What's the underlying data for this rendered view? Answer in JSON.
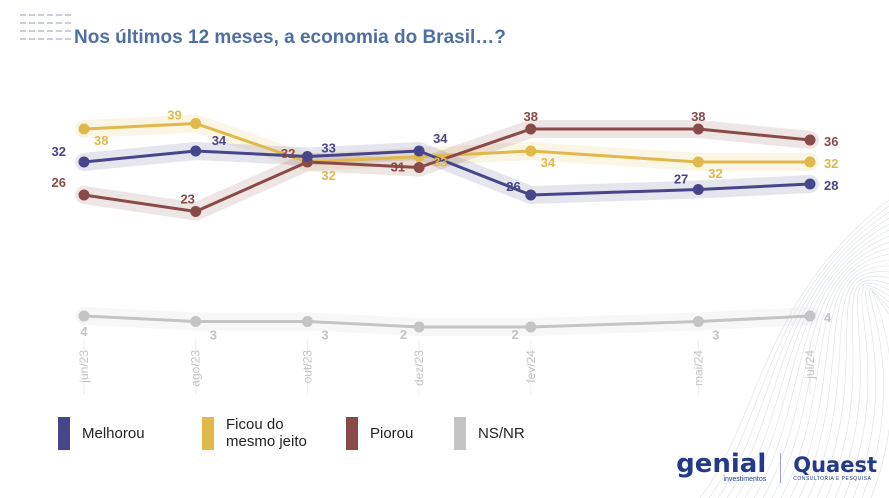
{
  "chart_data": {
    "type": "line",
    "title": "Nos últimos 12 meses, a economia do Brasil…?",
    "categories": [
      "jun/23",
      "ago/23",
      "out/23",
      "dez/23",
      "fev/24",
      "mai/24",
      "jul/24"
    ],
    "x": [
      0,
      2,
      4,
      6,
      8,
      11,
      13
    ],
    "series": [
      {
        "name": "Melhorou",
        "color": "#48468a",
        "values": [
          32,
          34,
          33,
          34,
          26,
          27,
          28
        ]
      },
      {
        "name": "Ficou do mesmo jeito",
        "color": "#e1b84a",
        "values": [
          38,
          39,
          32,
          33,
          34,
          32,
          32
        ]
      },
      {
        "name": "Piorou",
        "color": "#8a4a48",
        "values": [
          26,
          23,
          32,
          31,
          38,
          38,
          36
        ]
      },
      {
        "name": "NS/NR",
        "color": "#c4c4c4",
        "values": [
          4,
          3,
          3,
          2,
          2,
          3,
          4
        ]
      }
    ],
    "ylim": [
      0,
      50
    ],
    "grid": false,
    "legend": "bottom-left"
  },
  "legend": {
    "items": [
      {
        "line1": "Melhorou",
        "line2": "",
        "color": "#48468a"
      },
      {
        "line1": "Ficou do",
        "line2": "mesmo jeito",
        "color": "#e1b84a"
      },
      {
        "line1": "Piorou",
        "line2": "",
        "color": "#8a4a48"
      },
      {
        "line1": "NS/NR",
        "line2": "",
        "color": "#c4c4c4"
      }
    ]
  },
  "logos": {
    "genial_name": "genial",
    "genial_tagline": "investimentos",
    "quaest_name": "Quaest",
    "quaest_tagline": "CONSULTORIA E PESQUISA"
  }
}
